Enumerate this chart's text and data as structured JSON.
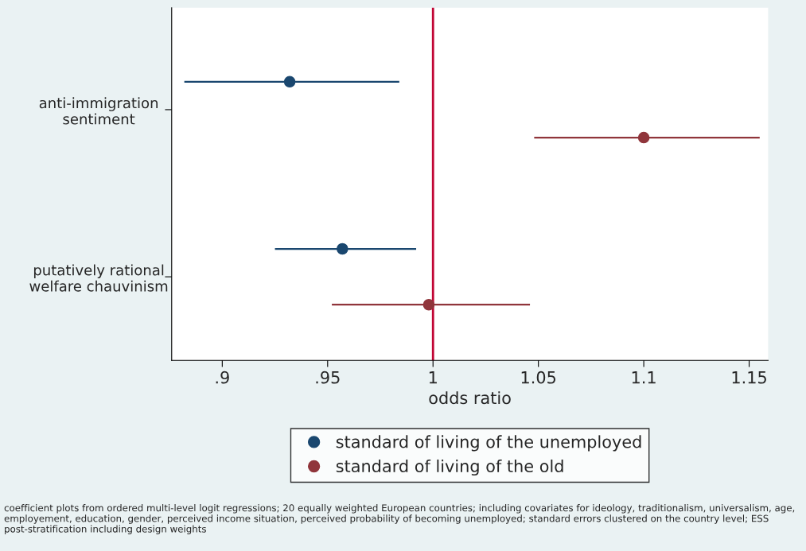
{
  "chart_data": {
    "type": "scatter",
    "orientation": "horizontal",
    "categories": [
      "anti-immigration\nsentiment",
      "putatively rational\nwelfare chauvinism"
    ],
    "xlabel": "odds ratio",
    "series": [
      {
        "name": "standard of living of the unemployed",
        "color": "#1a476f",
        "values": [
          0.932,
          0.957
        ],
        "errors": [
          [
            0.882,
            0.984
          ],
          [
            0.925,
            0.992
          ]
        ]
      },
      {
        "name": "standard of living of the old",
        "color": "#90353b",
        "values": [
          1.1,
          0.998
        ],
        "errors": [
          [
            1.048,
            1.155
          ],
          [
            0.952,
            1.046
          ]
        ]
      }
    ],
    "xlim": [
      0.876,
      1.159
    ],
    "xticks": [
      {
        "value": 0.9,
        "label": ".9"
      },
      {
        "value": 0.95,
        "label": ".95"
      },
      1,
      1.05,
      1.1,
      1.15
    ],
    "ref_lines": [
      {
        "axis": "x",
        "value": 1,
        "color": "#c10534"
      }
    ],
    "marker": "circle",
    "grid": false,
    "legend": "bottom",
    "annotations": [
      "coefficient plots from ordered multi-level logit regressions; 20 equally weighted European countries; including covariates for ideology, traditionalism, universalism, age, employement, education, gender, perceived income situation, perceived probability of becoming unemployed; standard errors clustered on the country level; ESS post-stratification including design weights"
    ]
  }
}
